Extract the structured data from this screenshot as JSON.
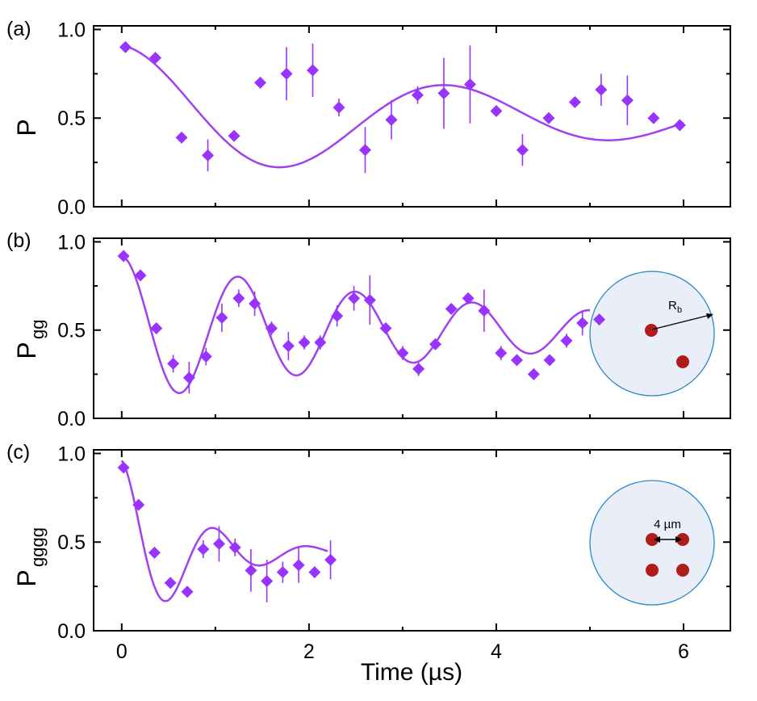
{
  "colors": {
    "series": "#9933FF",
    "fit": "#A040F0",
    "atom": "#B01C1C",
    "circle_fill": "#E9EEF8",
    "circle_stroke": "#2A88C8"
  },
  "chart_data": [
    {
      "type": "scatter",
      "panel_label": "(a)",
      "ylabel": "P",
      "ylabel_sub": "",
      "xlim": [
        -0.3,
        6.5
      ],
      "ylim": [
        0,
        1
      ],
      "xticks": [
        0,
        2,
        4,
        6
      ],
      "yticks": [
        "0.0",
        "0.5",
        "1.0"
      ],
      "x": [
        0.02,
        0.18,
        0.32,
        0.46,
        0.6,
        0.74,
        0.88,
        1.02,
        1.16,
        1.3,
        1.44,
        1.58,
        1.72,
        1.86,
        2.0,
        2.14,
        2.28,
        2.42,
        2.56,
        2.7,
        2.84,
        2.98
      ],
      "y": [
        0.9,
        0.84,
        0.39,
        0.29,
        0.4,
        0.7,
        0.75,
        0.77,
        0.56,
        0.32,
        0.49,
        0.63,
        0.64,
        0.69,
        0.54,
        0.32,
        0.5,
        0.59,
        0.66,
        0.6,
        0.5,
        0.46
      ],
      "yerr": [
        0.02,
        0.02,
        0.03,
        0.09,
        0.03,
        0.03,
        0.15,
        0.15,
        0.05,
        0.13,
        0.11,
        0.05,
        0.2,
        0.22,
        0.03,
        0.09,
        0.03,
        0.03,
        0.09,
        0.14,
        0.02,
        0.02
      ],
      "fit": {
        "a": 0.5,
        "b": 0.41,
        "tau": 2.2,
        "f": 0.57
      },
      "fit_xmax": 3.0,
      "x_scale": 2.0
    },
    {
      "type": "scatter",
      "panel_label": "(b)",
      "ylabel": "P",
      "ylabel_sub": "gg",
      "xlim": [
        -0.3,
        6.5
      ],
      "ylim": [
        0,
        1
      ],
      "xticks": [
        0,
        2,
        4,
        6
      ],
      "yticks": [
        "0.0",
        "0.5",
        "1.0"
      ],
      "x": [
        0.02,
        0.2,
        0.37,
        0.55,
        0.72,
        0.9,
        1.07,
        1.25,
        1.42,
        1.6,
        1.78,
        1.95,
        2.12,
        2.3,
        2.48,
        2.65,
        2.82,
        3.0,
        3.17,
        3.35,
        3.52,
        3.7,
        3.87,
        4.05,
        4.22,
        4.4,
        4.57,
        4.75,
        4.92,
        5.1
      ],
      "y": [
        0.92,
        0.81,
        0.51,
        0.31,
        0.23,
        0.35,
        0.57,
        0.68,
        0.65,
        0.51,
        0.41,
        0.43,
        0.43,
        0.58,
        0.68,
        0.67,
        0.51,
        0.37,
        0.28,
        0.42,
        0.62,
        0.68,
        0.61,
        0.37,
        0.33,
        0.25,
        0.33,
        0.44,
        0.54,
        0.56
      ],
      "yerr": [
        0.02,
        0.02,
        0.03,
        0.05,
        0.09,
        0.05,
        0.08,
        0.05,
        0.07,
        0.04,
        0.08,
        0.04,
        0.04,
        0.06,
        0.07,
        0.14,
        0.03,
        0.04,
        0.04,
        0.03,
        0.02,
        0.02,
        0.12,
        0.04,
        0.02,
        0.02,
        0.03,
        0.04,
        0.07,
        0.02
      ],
      "fit": {
        "a": 0.5,
        "b": 0.42,
        "tau": 3.8,
        "f": 0.8
      },
      "fit_xmax": 5.0,
      "x_scale": 1.0,
      "inset": {
        "label": "R",
        "label_sub": "b",
        "atoms": [
          [
            0.5,
            0.5
          ],
          [
            1.2,
            -0.25
          ]
        ]
      }
    },
    {
      "type": "scatter",
      "panel_label": "(c)",
      "ylabel": "P",
      "ylabel_sub": "gggg",
      "xlim": [
        -0.3,
        6.5
      ],
      "ylim": [
        0,
        1
      ],
      "xticks": [
        "0",
        "2",
        "4",
        "6"
      ],
      "yticks": [
        "0.0",
        "0.5",
        "1.0"
      ],
      "x": [
        0.02,
        0.18,
        0.35,
        0.52,
        0.7,
        0.87,
        1.04,
        1.21,
        1.38,
        1.55,
        1.72,
        1.89,
        2.06,
        2.23
      ],
      "y": [
        0.92,
        0.71,
        0.44,
        0.27,
        0.22,
        0.46,
        0.49,
        0.47,
        0.34,
        0.28,
        0.33,
        0.37,
        0.33,
        0.4
      ],
      "yerr": [
        0.02,
        0.02,
        0.02,
        0.03,
        0.02,
        0.05,
        0.1,
        0.05,
        0.12,
        0.12,
        0.06,
        0.1,
        0.02,
        0.11
      ],
      "fit": {
        "a": 0.44,
        "b": 0.52,
        "tau": 0.75,
        "f": 1.0
      },
      "fit_xmax": 2.2,
      "x_scale": 1.0,
      "inset": {
        "label": "4 µm",
        "atoms": [
          [
            0.5,
            0.5
          ],
          [
            1.0,
            0.5
          ],
          [
            0.5,
            0.0
          ],
          [
            1.0,
            0.0
          ]
        ]
      }
    }
  ],
  "xlabel": "Time (µs)"
}
